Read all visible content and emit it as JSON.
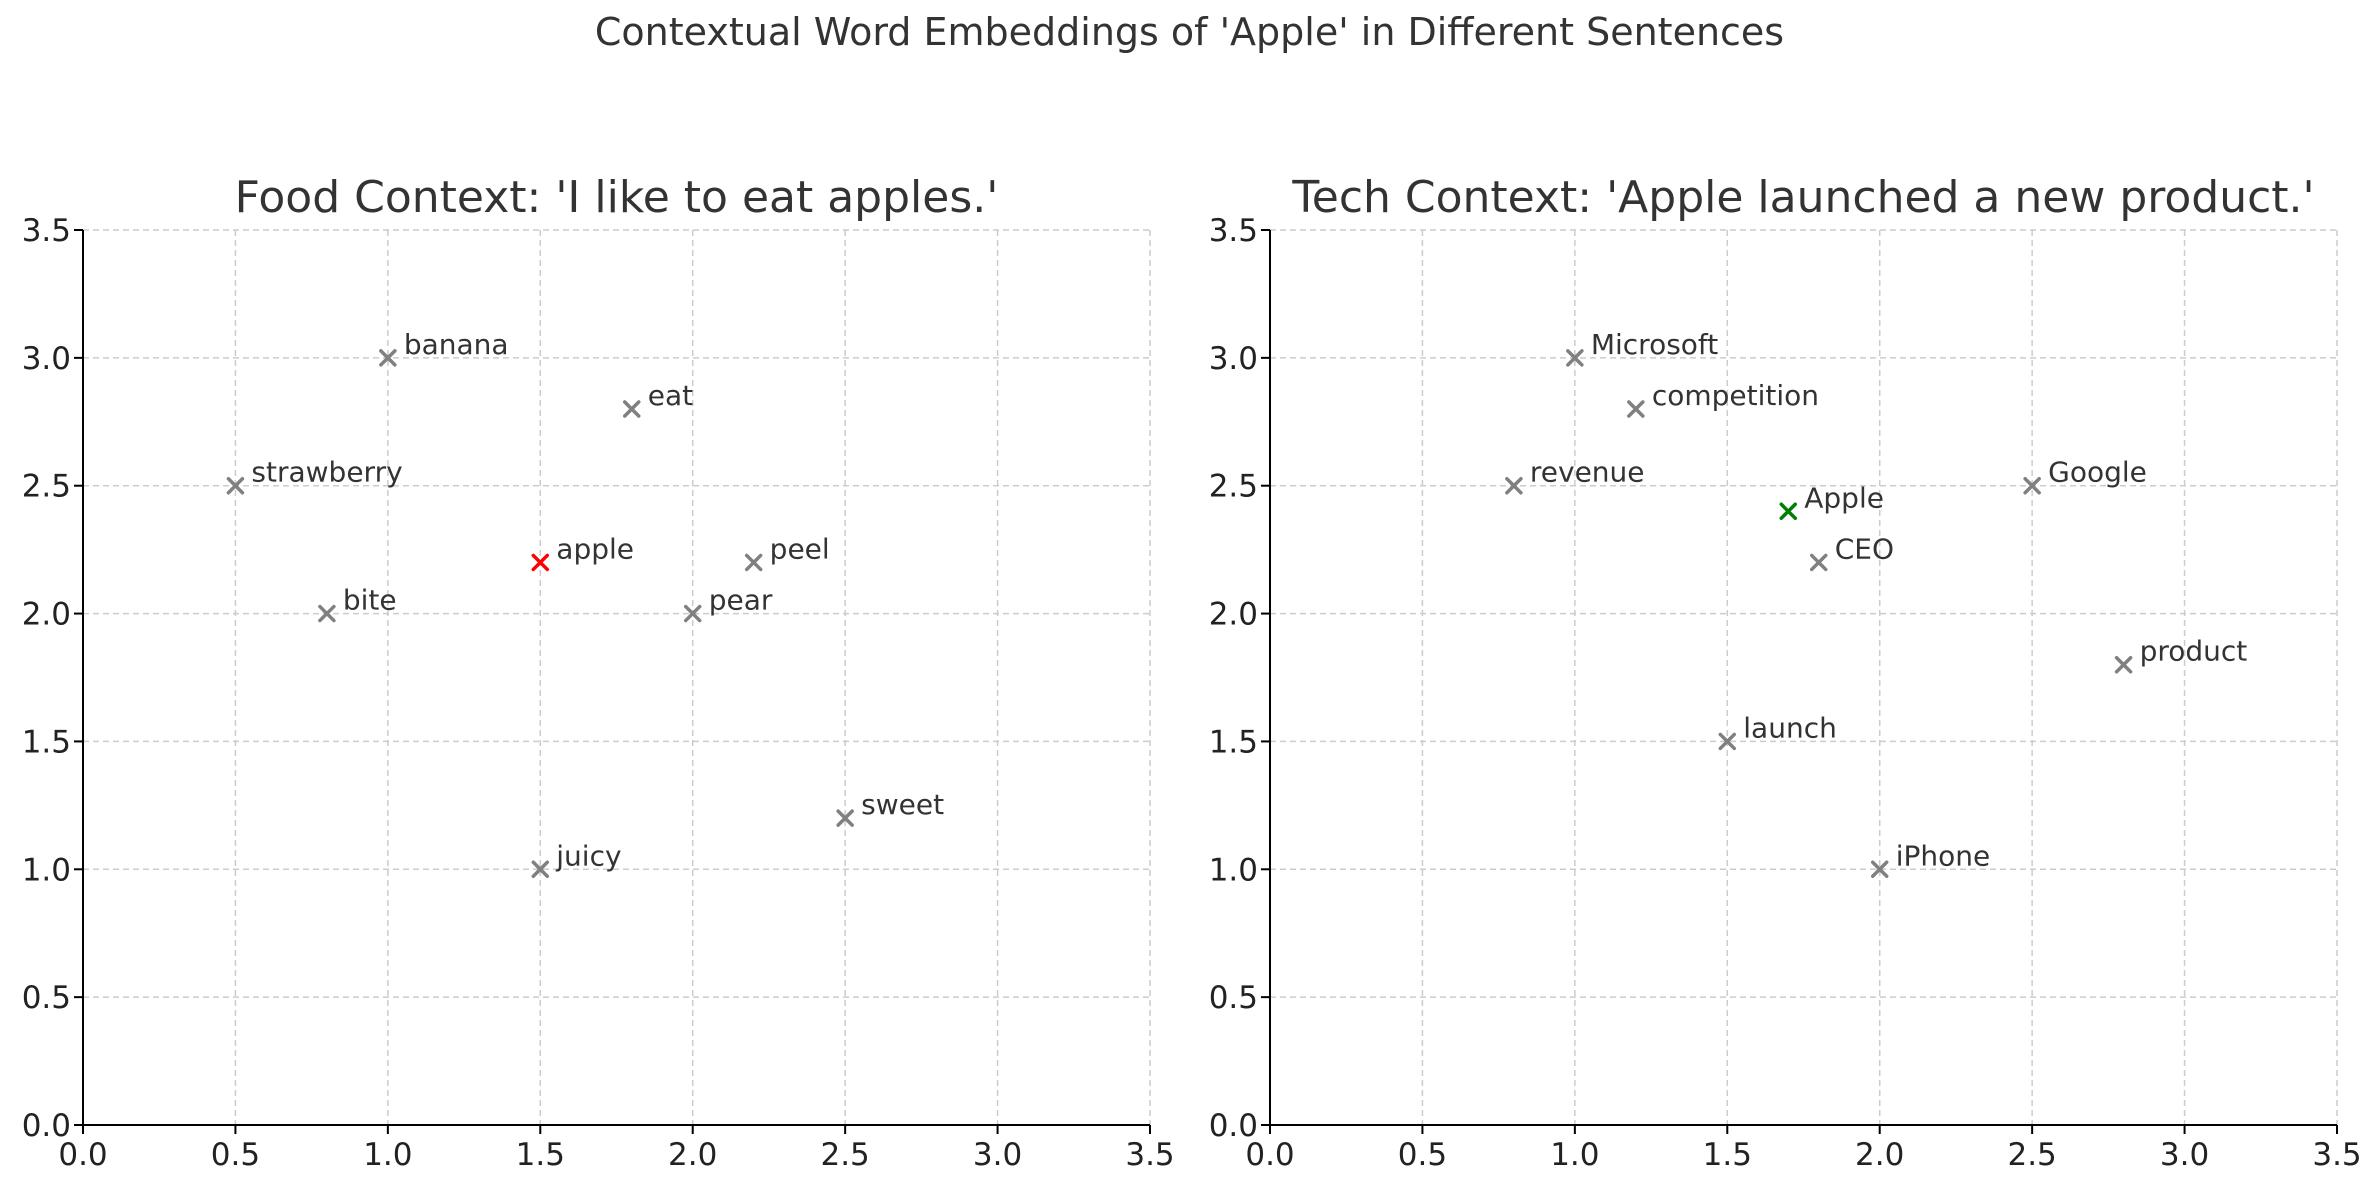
{
  "suptitle": "Contextual Word Embeddings of 'Apple' in Different Sentences",
  "chart_data": [
    {
      "type": "scatter",
      "title": "Food Context: 'I like to eat apples.'",
      "xlabel": "",
      "ylabel": "",
      "xlim": [
        0,
        3.5
      ],
      "ylim": [
        0,
        3.5
      ],
      "xticks": [
        "0.0",
        "0.5",
        "1.0",
        "1.5",
        "2.0",
        "2.5",
        "3.0",
        "3.5"
      ],
      "yticks": [
        "0.0",
        "0.5",
        "1.0",
        "1.5",
        "2.0",
        "2.5",
        "3.0",
        "3.5"
      ],
      "grid": true,
      "marker": "x",
      "highlight_color": "#ff0000",
      "default_color": "#808080",
      "points": [
        {
          "label": "banana",
          "x": 1.0,
          "y": 3.0,
          "highlight": false
        },
        {
          "label": "eat",
          "x": 1.8,
          "y": 2.8,
          "highlight": false
        },
        {
          "label": "strawberry",
          "x": 0.5,
          "y": 2.5,
          "highlight": false
        },
        {
          "label": "apple",
          "x": 1.5,
          "y": 2.2,
          "highlight": true
        },
        {
          "label": "peel",
          "x": 2.2,
          "y": 2.2,
          "highlight": false
        },
        {
          "label": "bite",
          "x": 0.8,
          "y": 2.0,
          "highlight": false
        },
        {
          "label": "pear",
          "x": 2.0,
          "y": 2.0,
          "highlight": false
        },
        {
          "label": "sweet",
          "x": 2.5,
          "y": 1.2,
          "highlight": false
        },
        {
          "label": "juicy",
          "x": 1.5,
          "y": 1.0,
          "highlight": false
        }
      ]
    },
    {
      "type": "scatter",
      "title": "Tech Context: 'Apple launched a new product.'",
      "xlabel": "",
      "ylabel": "",
      "xlim": [
        0,
        3.5
      ],
      "ylim": [
        0,
        3.5
      ],
      "xticks": [
        "0.0",
        "0.5",
        "1.0",
        "1.5",
        "2.0",
        "2.5",
        "3.0",
        "3.5"
      ],
      "yticks": [
        "0.0",
        "0.5",
        "1.0",
        "1.5",
        "2.0",
        "2.5",
        "3.0",
        "3.5"
      ],
      "grid": true,
      "marker": "x",
      "highlight_color": "#008000",
      "default_color": "#808080",
      "points": [
        {
          "label": "Microsoft",
          "x": 1.0,
          "y": 3.0,
          "highlight": false
        },
        {
          "label": "competition",
          "x": 1.2,
          "y": 2.8,
          "highlight": false
        },
        {
          "label": "revenue",
          "x": 0.8,
          "y": 2.5,
          "highlight": false
        },
        {
          "label": "Google",
          "x": 2.5,
          "y": 2.5,
          "highlight": false
        },
        {
          "label": "Apple",
          "x": 1.7,
          "y": 2.4,
          "highlight": true
        },
        {
          "label": "CEO",
          "x": 1.8,
          "y": 2.2,
          "highlight": false
        },
        {
          "label": "product",
          "x": 2.8,
          "y": 1.8,
          "highlight": false
        },
        {
          "label": "launch",
          "x": 1.5,
          "y": 1.5,
          "highlight": false
        },
        {
          "label": "iPhone",
          "x": 2.0,
          "y": 1.0,
          "highlight": false
        }
      ]
    }
  ]
}
